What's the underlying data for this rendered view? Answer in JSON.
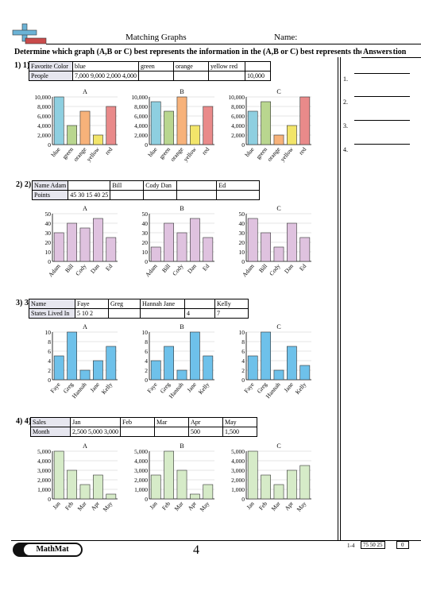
{
  "header": {
    "title": "Matching Graphs",
    "name_label": "Name:",
    "instructions": "Determine which graph (A,B or C) best represents the information in the  (A,B or C) best represents the information",
    "answers_label": "Answers"
  },
  "answer_numbers": [
    "1.",
    "2.",
    "3.",
    "4."
  ],
  "questions": [
    {
      "label": "1) 1)",
      "table": {
        "row1": [
          "Favorite Color",
          "blue",
          "green",
          "orange",
          "yellow red",
          ""
        ],
        "row2": [
          "People",
          "7,000 9,000 2,000 4,000",
          "",
          "",
          "",
          "10,000"
        ]
      }
    },
    {
      "label": "2) 2)",
      "table": {
        "row1": [
          "Name Adam",
          "",
          "Bill",
          "Cody Dan",
          "",
          "Ed"
        ],
        "row2": [
          "Points",
          "45 30 15 40 25",
          "",
          "",
          "",
          ""
        ]
      }
    },
    {
      "label": "3) 3)",
      "table": {
        "row1": [
          "Name",
          "Faye",
          "Greg",
          "Hannah Jane",
          "",
          "Kelly"
        ],
        "row2": [
          "States Lived In",
          "5 10 2",
          "",
          "",
          "4",
          "7"
        ]
      }
    },
    {
      "label": "4) 4)",
      "table": {
        "row1": [
          "Sales",
          "Jan",
          "Feb",
          "Mar",
          "Apr",
          "May"
        ],
        "row2": [
          "Month",
          "2,500 5,000 3,000",
          "",
          "",
          "500",
          "1,500"
        ]
      }
    }
  ],
  "footer": {
    "logo": "MathMat",
    "page_number": "4",
    "score_range": "1-4",
    "score_values": "75 50 25",
    "score_zero": "0"
  },
  "chart_data": [
    {
      "type": "bar",
      "question": 1,
      "title": "A",
      "categories": [
        "blue",
        "green",
        "orange",
        "yellow",
        "red"
      ],
      "values": [
        10000,
        4000,
        7000,
        2000,
        8000
      ],
      "colors": [
        "#8ecfe0",
        "#b9d68f",
        "#f7b27a",
        "#f2e56a",
        "#e98a8a"
      ],
      "ylim": [
        0,
        10000
      ],
      "yticks": [
        "0",
        "2,000",
        "4,000",
        "6,000",
        "8,000",
        "10,000"
      ]
    },
    {
      "type": "bar",
      "question": 1,
      "title": "B",
      "categories": [
        "blue",
        "green",
        "orange",
        "yellow",
        "red"
      ],
      "values": [
        9000,
        7000,
        10000,
        4000,
        8000
      ],
      "colors": [
        "#8ecfe0",
        "#b9d68f",
        "#f7b27a",
        "#f2e56a",
        "#e98a8a"
      ],
      "ylim": [
        0,
        10000
      ],
      "yticks": [
        "0",
        "2,000",
        "4,000",
        "6,000",
        "8,000",
        "10,000"
      ]
    },
    {
      "type": "bar",
      "question": 1,
      "title": "C",
      "categories": [
        "blue",
        "green",
        "orange",
        "yellow",
        "red"
      ],
      "values": [
        7000,
        9000,
        2000,
        4000,
        10000
      ],
      "colors": [
        "#8ecfe0",
        "#b9d68f",
        "#f7b27a",
        "#f2e56a",
        "#e98a8a"
      ],
      "ylim": [
        0,
        10000
      ],
      "yticks": [
        "0",
        "2,000",
        "4,000",
        "6,000",
        "8,000",
        "10,000"
      ]
    },
    {
      "type": "bar",
      "question": 2,
      "title": "A",
      "categories": [
        "Adam",
        "Bill",
        "Cody",
        "Dan",
        "Ed"
      ],
      "values": [
        30,
        40,
        35,
        45,
        25
      ],
      "colors": [
        "#dfc2df"
      ],
      "ylim": [
        0,
        50
      ],
      "yticks": [
        "0",
        "10",
        "20",
        "30",
        "40",
        "50"
      ]
    },
    {
      "type": "bar",
      "question": 2,
      "title": "B",
      "categories": [
        "Adam",
        "Bill",
        "Cody",
        "Dan",
        "Ed"
      ],
      "values": [
        15,
        40,
        30,
        45,
        25
      ],
      "colors": [
        "#dfc2df"
      ],
      "ylim": [
        0,
        50
      ],
      "yticks": [
        "0",
        "10",
        "20",
        "30",
        "40",
        "50"
      ]
    },
    {
      "type": "bar",
      "question": 2,
      "title": "C",
      "categories": [
        "Adam",
        "Bill",
        "Cody",
        "Dan",
        "Ed"
      ],
      "values": [
        45,
        30,
        15,
        40,
        25
      ],
      "colors": [
        "#dfc2df"
      ],
      "ylim": [
        0,
        50
      ],
      "yticks": [
        "0",
        "10",
        "20",
        "30",
        "40",
        "50"
      ]
    },
    {
      "type": "bar",
      "question": 3,
      "title": "A",
      "categories": [
        "Faye",
        "Greg",
        "Hannah",
        "Jane",
        "Kelly"
      ],
      "values": [
        5,
        10,
        2,
        4,
        7
      ],
      "colors": [
        "#6ec1ea"
      ],
      "ylim": [
        0,
        10
      ],
      "yticks": [
        "0",
        "2",
        "4",
        "6",
        "8",
        "10"
      ]
    },
    {
      "type": "bar",
      "question": 3,
      "title": "B",
      "categories": [
        "Faye",
        "Greg",
        "Hannah",
        "Jane",
        "Kelly"
      ],
      "values": [
        4,
        7,
        2,
        10,
        5
      ],
      "colors": [
        "#6ec1ea"
      ],
      "ylim": [
        0,
        10
      ],
      "yticks": [
        "0",
        "2",
        "4",
        "6",
        "8",
        "10"
      ]
    },
    {
      "type": "bar",
      "question": 3,
      "title": "C",
      "categories": [
        "Faye",
        "Greg",
        "Hannah",
        "Jane",
        "Kelly"
      ],
      "values": [
        5,
        10,
        2,
        7,
        3
      ],
      "colors": [
        "#6ec1ea"
      ],
      "ylim": [
        0,
        10
      ],
      "yticks": [
        "0",
        "2",
        "4",
        "6",
        "8",
        "10"
      ]
    },
    {
      "type": "bar",
      "question": 4,
      "title": "A",
      "categories": [
        "Jan",
        "Feb",
        "Mar",
        "Apr",
        "May"
      ],
      "values": [
        5000,
        3000,
        1500,
        2500,
        500
      ],
      "colors": [
        "#d6ebc8"
      ],
      "ylim": [
        0,
        5000
      ],
      "yticks": [
        "0",
        "1,000",
        "2,000",
        "3,000",
        "4,000",
        "5,000"
      ]
    },
    {
      "type": "bar",
      "question": 4,
      "title": "B",
      "categories": [
        "Jan",
        "Feb",
        "Mar",
        "Apr",
        "May"
      ],
      "values": [
        2500,
        5000,
        3000,
        500,
        1500
      ],
      "colors": [
        "#d6ebc8"
      ],
      "ylim": [
        0,
        5000
      ],
      "yticks": [
        "0",
        "1,000",
        "2,000",
        "3,000",
        "4,000",
        "5,000"
      ]
    },
    {
      "type": "bar",
      "question": 4,
      "title": "C",
      "categories": [
        "Jan",
        "Feb",
        "Mar",
        "Apr",
        "May"
      ],
      "values": [
        5000,
        2500,
        1500,
        3000,
        3500
      ],
      "colors": [
        "#d6ebc8"
      ],
      "ylim": [
        0,
        5000
      ],
      "yticks": [
        "0",
        "1,000",
        "2,000",
        "3,000",
        "4,000",
        "5,000"
      ]
    }
  ]
}
